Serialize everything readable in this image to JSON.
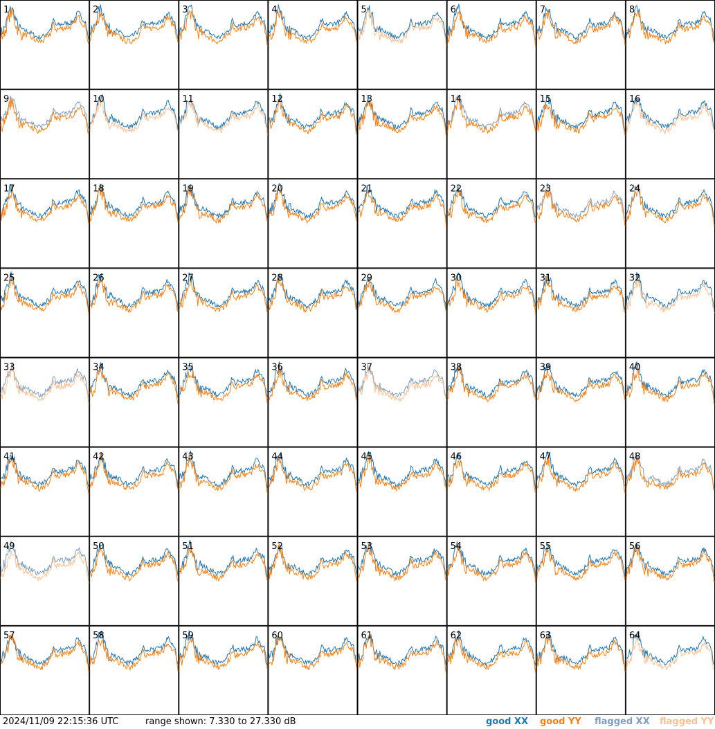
{
  "timestamp": "2024/11/09 22:15:36 UTC",
  "range_label": "range shown: 7.330 to 27.330 dB",
  "legend": {
    "good_xx": "good XX",
    "good_yy": "good YY",
    "flagged_xx": "flagged XX",
    "flagged_yy": "flagged YY"
  },
  "colors": {
    "good_xx": "#1f77b4",
    "good_yy": "#ff7f0e",
    "flagged_xx": "#7f9fbf",
    "flagged_yy": "#ffbf8f"
  },
  "chart_data": {
    "type": "line",
    "grid": "8x8 small multiples",
    "y_range_db": [
      7.33,
      27.33
    ],
    "panels": [
      {
        "label": "1",
        "xx": "good",
        "yy": "good"
      },
      {
        "label": "2",
        "xx": "good",
        "yy": "good"
      },
      {
        "label": "3",
        "xx": "good",
        "yy": "good"
      },
      {
        "label": "4",
        "xx": "good",
        "yy": "good"
      },
      {
        "label": "5",
        "xx": "good",
        "yy": "flagged"
      },
      {
        "label": "6",
        "xx": "good",
        "yy": "good"
      },
      {
        "label": "7",
        "xx": "good",
        "yy": "good"
      },
      {
        "label": "8",
        "xx": "good",
        "yy": "good"
      },
      {
        "label": "9",
        "xx": "flagged",
        "yy": "good"
      },
      {
        "label": "10",
        "xx": "good",
        "yy": "flagged"
      },
      {
        "label": "11",
        "xx": "good",
        "yy": "flagged"
      },
      {
        "label": "12",
        "xx": "good",
        "yy": "good"
      },
      {
        "label": "13",
        "xx": "good",
        "yy": "good"
      },
      {
        "label": "14",
        "xx": "flagged",
        "yy": "good"
      },
      {
        "label": "15",
        "xx": "good",
        "yy": "good"
      },
      {
        "label": "16",
        "xx": "good",
        "yy": "flagged"
      },
      {
        "label": "17",
        "xx": "good",
        "yy": "good"
      },
      {
        "label": "18",
        "xx": "good",
        "yy": "good"
      },
      {
        "label": "19",
        "xx": "good",
        "yy": "good"
      },
      {
        "label": "20",
        "xx": "good",
        "yy": "good"
      },
      {
        "label": "21",
        "xx": "good",
        "yy": "good"
      },
      {
        "label": "22",
        "xx": "good",
        "yy": "good"
      },
      {
        "label": "23",
        "xx": "flagged",
        "yy": "good"
      },
      {
        "label": "24",
        "xx": "good",
        "yy": "good"
      },
      {
        "label": "25",
        "xx": "good",
        "yy": "good"
      },
      {
        "label": "26",
        "xx": "good",
        "yy": "good"
      },
      {
        "label": "27",
        "xx": "good",
        "yy": "good"
      },
      {
        "label": "28",
        "xx": "good",
        "yy": "good"
      },
      {
        "label": "29",
        "xx": "good",
        "yy": "good"
      },
      {
        "label": "30",
        "xx": "good",
        "yy": "good"
      },
      {
        "label": "31",
        "xx": "good",
        "yy": "good"
      },
      {
        "label": "32",
        "xx": "good",
        "yy": "flagged"
      },
      {
        "label": "33",
        "xx": "flagged",
        "yy": "flagged"
      },
      {
        "label": "34",
        "xx": "good",
        "yy": "good"
      },
      {
        "label": "35",
        "xx": "good",
        "yy": "good"
      },
      {
        "label": "36",
        "xx": "good",
        "yy": "good"
      },
      {
        "label": "37",
        "xx": "flagged",
        "yy": "flagged"
      },
      {
        "label": "38",
        "xx": "good",
        "yy": "good"
      },
      {
        "label": "39",
        "xx": "good",
        "yy": "good"
      },
      {
        "label": "40",
        "xx": "good",
        "yy": "good"
      },
      {
        "label": "41",
        "xx": "good",
        "yy": "good"
      },
      {
        "label": "42",
        "xx": "good",
        "yy": "good"
      },
      {
        "label": "43",
        "xx": "good",
        "yy": "good"
      },
      {
        "label": "44",
        "xx": "good",
        "yy": "good"
      },
      {
        "label": "45",
        "xx": "good",
        "yy": "good"
      },
      {
        "label": "46",
        "xx": "good",
        "yy": "good"
      },
      {
        "label": "47",
        "xx": "good",
        "yy": "good"
      },
      {
        "label": "48",
        "xx": "flagged",
        "yy": "good"
      },
      {
        "label": "49",
        "xx": "flagged",
        "yy": "flagged"
      },
      {
        "label": "50",
        "xx": "good",
        "yy": "good"
      },
      {
        "label": "51",
        "xx": "good",
        "yy": "good"
      },
      {
        "label": "52",
        "xx": "good",
        "yy": "good"
      },
      {
        "label": "53",
        "xx": "good",
        "yy": "good"
      },
      {
        "label": "54",
        "xx": "good",
        "yy": "good"
      },
      {
        "label": "55",
        "xx": "good",
        "yy": "good"
      },
      {
        "label": "56",
        "xx": "good",
        "yy": "good"
      },
      {
        "label": "57",
        "xx": "good",
        "yy": "good"
      },
      {
        "label": "58",
        "xx": "good",
        "yy": "good"
      },
      {
        "label": "59",
        "xx": "good",
        "yy": "good"
      },
      {
        "label": "60",
        "xx": "good",
        "yy": "good"
      },
      {
        "label": "61",
        "xx": "good",
        "yy": "good"
      },
      {
        "label": "62",
        "xx": "good",
        "yy": "good"
      },
      {
        "label": "63",
        "xx": "good",
        "yy": "good"
      },
      {
        "label": "64",
        "xx": "good",
        "yy": "flagged"
      }
    ]
  }
}
